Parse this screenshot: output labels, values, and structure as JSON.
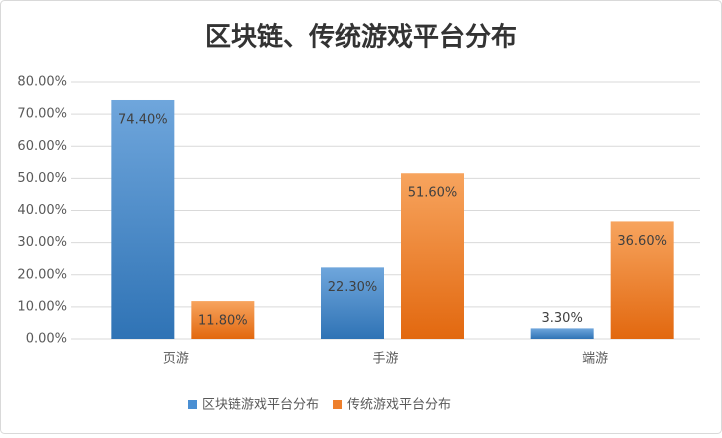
{
  "chart_data": {
    "type": "bar",
    "title": "区块链、传统游戏平台分布",
    "categories": [
      "页游",
      "手游",
      "端游"
    ],
    "series": [
      {
        "name": "区块链游戏平台分布",
        "color": "#4a8fd3",
        "values": [
          74.4,
          22.3,
          3.3
        ],
        "value_labels": [
          "74.40%",
          "22.30%",
          "3.30%"
        ]
      },
      {
        "name": "传统游戏平台分布",
        "color": "#ee7f2c",
        "values": [
          11.8,
          51.6,
          36.6
        ],
        "value_labels": [
          "11.80%",
          "51.60%",
          "36.60%"
        ]
      }
    ],
    "ylim": [
      0,
      80
    ],
    "yticks": [
      {
        "value": 0,
        "label": "0.00%"
      },
      {
        "value": 10,
        "label": "10.00%"
      },
      {
        "value": 20,
        "label": "20.00%"
      },
      {
        "value": 30,
        "label": "30.00%"
      },
      {
        "value": 40,
        "label": "40.00%"
      },
      {
        "value": 50,
        "label": "50.00%"
      },
      {
        "value": 60,
        "label": "60.00%"
      },
      {
        "value": 70,
        "label": "70.00%"
      },
      {
        "value": 80,
        "label": "80.00%"
      }
    ],
    "grid": true
  }
}
